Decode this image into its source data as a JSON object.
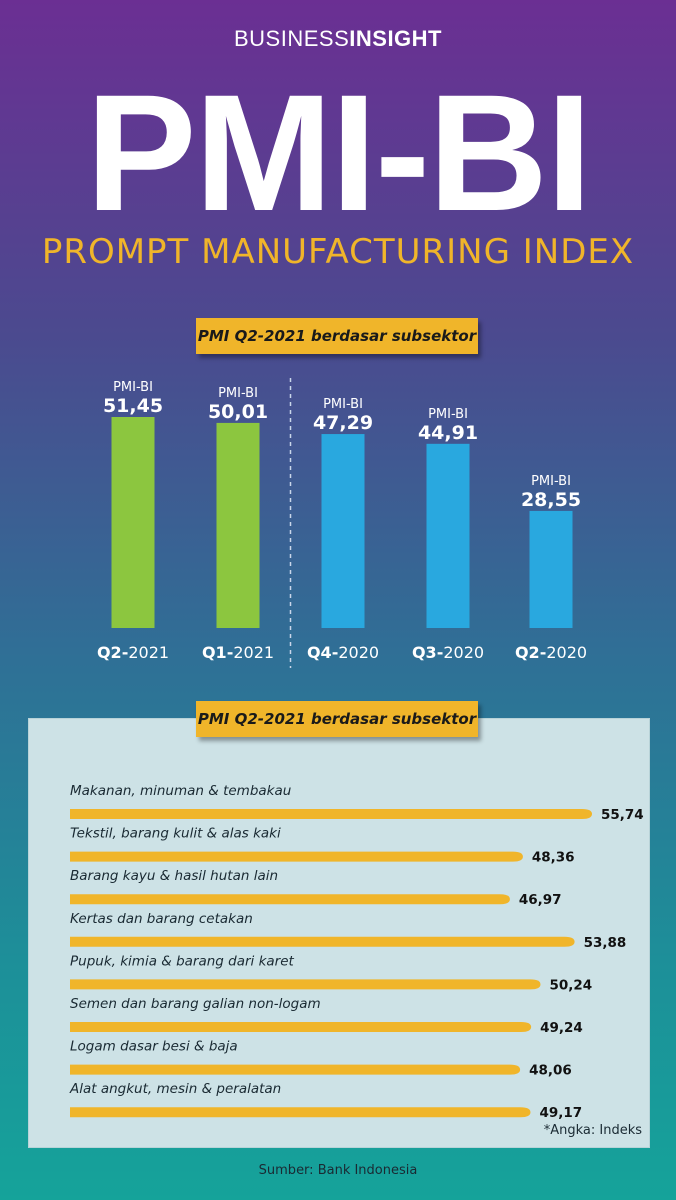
{
  "brand": {
    "part1": "BUSINESS",
    "part2": "INSIGHT"
  },
  "title": "PMI-BI",
  "subtitle": "PROMPT MANUFACTURING INDEX",
  "colors": {
    "green": "#8cc63f",
    "blue": "#29a8df",
    "gold": "#f0b52a"
  },
  "chart_data": [
    {
      "type": "bar",
      "title": "PMI Q2-2021 berdasar subsektor",
      "bar_label_prefix": "PMI-BI",
      "categories": [
        {
          "q": "Q2-",
          "y": "2021"
        },
        {
          "q": "Q1-",
          "y": "2021"
        },
        {
          "q": "Q4-",
          "y": "2020"
        },
        {
          "q": "Q3-",
          "y": "2020"
        },
        {
          "q": "Q2-",
          "y": "2020"
        }
      ],
      "values": [
        51.45,
        50.01,
        47.29,
        44.91,
        28.55
      ],
      "value_labels": [
        "51,45",
        "50,01",
        "47,29",
        "44,91",
        "28,55"
      ],
      "bar_colors": [
        "green",
        "green",
        "blue",
        "blue",
        "blue"
      ],
      "separator_after_index": 1,
      "ylim": [
        0,
        55
      ]
    },
    {
      "type": "bar",
      "orientation": "horizontal",
      "title": "PMI Q2-2021 berdasar subsektor",
      "categories": [
        "Makanan, minuman & tembakau",
        "Tekstil, barang kulit & alas kaki",
        "Barang kayu & hasil hutan lain",
        "Kertas dan barang cetakan",
        "Pupuk, kimia & barang dari karet",
        "Semen dan barang galian non-logam",
        "Logam dasar besi & baja",
        "Alat angkut, mesin & peralatan"
      ],
      "values": [
        55.74,
        48.36,
        46.97,
        53.88,
        50.24,
        49.24,
        48.06,
        49.17
      ],
      "value_labels": [
        "55,74",
        "48,36",
        "46,97",
        "53,88",
        "50,24",
        "49,24",
        "48,06",
        "49,17"
      ],
      "xlim": [
        40,
        56
      ]
    }
  ],
  "note": "*Angka: Indeks",
  "source": "Sumber: Bank Indonesia"
}
